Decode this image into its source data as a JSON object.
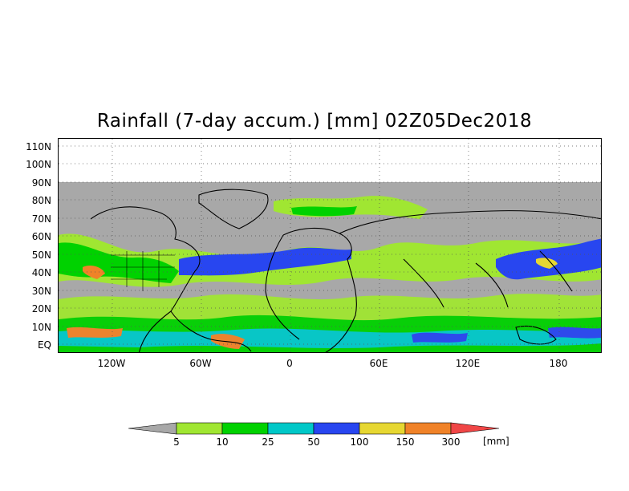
{
  "title": "Rainfall (7-day accum.) [mm] 02Z05Dec2018",
  "lat_labels": [
    "110N",
    "100N",
    "90N",
    "80N",
    "70N",
    "60N",
    "50N",
    "40N",
    "30N",
    "20N",
    "10N",
    "EQ"
  ],
  "lon_labels": [
    "120W",
    "60W",
    "0",
    "60E",
    "120E",
    "180"
  ],
  "colorbar": {
    "ticks": [
      "5",
      "10",
      "25",
      "50",
      "100",
      "150",
      "300"
    ],
    "unit": "[mm]",
    "colors": [
      "#a8a8a8",
      "#a0e632",
      "#00d200",
      "#00c8c8",
      "#2846f0",
      "#e6d732",
      "#f08228",
      "#f04646"
    ]
  },
  "colors": {
    "no_data": "#ffffff",
    "below_threshold": "#a8a8a8",
    "coastline": "#000000"
  }
}
